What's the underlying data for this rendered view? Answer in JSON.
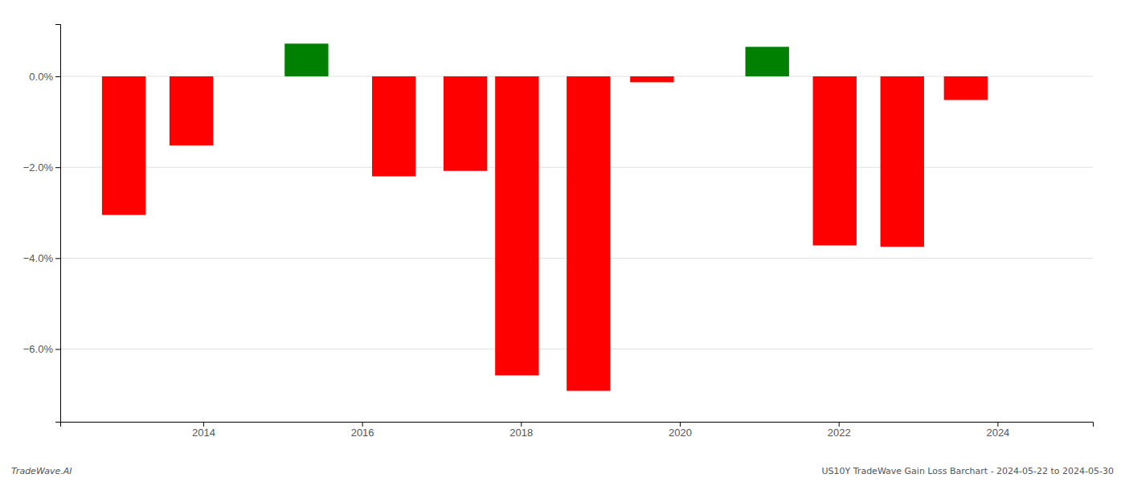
{
  "chart_data": {
    "type": "bar",
    "x": [
      2013.0,
      2013.85,
      2015.3,
      2016.4,
      2017.3,
      2017.95,
      2018.85,
      2019.65,
      2021.1,
      2021.95,
      2022.8,
      2023.6
    ],
    "values": [
      -3.05,
      -1.52,
      0.72,
      -2.2,
      -2.08,
      -6.58,
      -6.92,
      -0.13,
      0.65,
      -3.72,
      -3.75,
      -0.52
    ],
    "colors": [
      "#ff0000",
      "#ff0000",
      "#008000",
      "#ff0000",
      "#ff0000",
      "#ff0000",
      "#ff0000",
      "#ff0000",
      "#008000",
      "#ff0000",
      "#ff0000",
      "#ff0000"
    ],
    "xlim": [
      2012.2,
      2025.2
    ],
    "xticks": [
      2014,
      2016,
      2018,
      2020,
      2022,
      2024
    ],
    "ylim": [
      -7.6,
      1.15
    ],
    "yticks": [
      {
        "value": 0.0,
        "label": "0.0%"
      },
      {
        "value": -2.0,
        "label": "−2.0%"
      },
      {
        "value": -4.0,
        "label": "−4.0%"
      },
      {
        "value": -6.0,
        "label": "−6.0%"
      }
    ],
    "grid": true,
    "annotations": [
      "TradeWave.AI",
      "US10Y TradeWave Gain Loss Barchart - 2024-05-22 to 2024-05-30"
    ]
  }
}
